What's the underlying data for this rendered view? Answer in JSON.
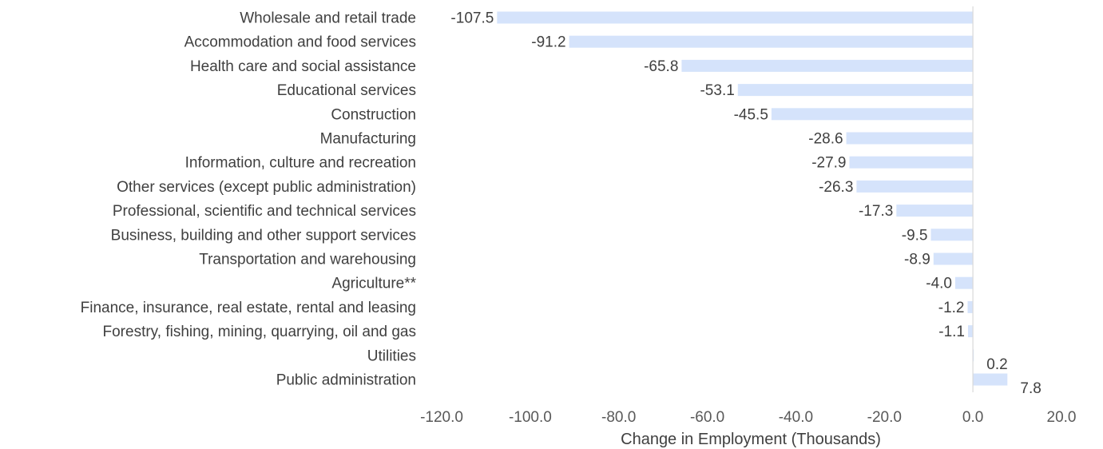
{
  "chart_data": {
    "type": "bar",
    "orientation": "horizontal",
    "title": "",
    "xlabel": "Change in Employment (Thousands)",
    "ylabel": "",
    "xlim": [
      -120.0,
      20.0
    ],
    "xticks": [
      -120.0,
      -100.0,
      -80.0,
      -60.0,
      -40.0,
      -20.0,
      0.0,
      20.0
    ],
    "tick_labels": [
      "-120.0",
      "-100.0",
      "-80.0",
      "-60.0",
      "-40.0",
      "-20.0",
      "0.0",
      "20.0"
    ],
    "categories": [
      "Wholesale and retail trade",
      "Accommodation and food services",
      "Health care and social assistance",
      "Educational services",
      "Construction",
      "Manufacturing",
      "Information, culture and recreation",
      "Other services (except public administration)",
      "Professional, scientific and technical services",
      "Business, building and other support services",
      "Transportation and warehousing",
      "Agriculture**",
      "Finance, insurance, real estate, rental and leasing",
      "Forestry, fishing, mining, quarrying, oil and gas",
      "Utilities",
      "Public administration"
    ],
    "values": [
      -107.5,
      -91.2,
      -65.8,
      -53.1,
      -45.5,
      -28.6,
      -27.9,
      -26.3,
      -17.3,
      -9.5,
      -8.9,
      -4.0,
      -1.2,
      -1.1,
      0.2,
      7.8
    ],
    "value_labels": [
      "-107.5",
      "-91.2",
      "-65.8",
      "-53.1",
      "-45.5",
      "-28.6",
      "-27.9",
      "-26.3",
      "-17.3",
      "-9.5",
      "-8.9",
      "-4.0",
      "-1.2",
      "-1.1",
      "0.2",
      "7.8"
    ],
    "grid": false,
    "legend": "none",
    "colors": {
      "bar": "#d5e3fb",
      "zero_line": "#d9d9d9",
      "text": "#404040"
    }
  }
}
